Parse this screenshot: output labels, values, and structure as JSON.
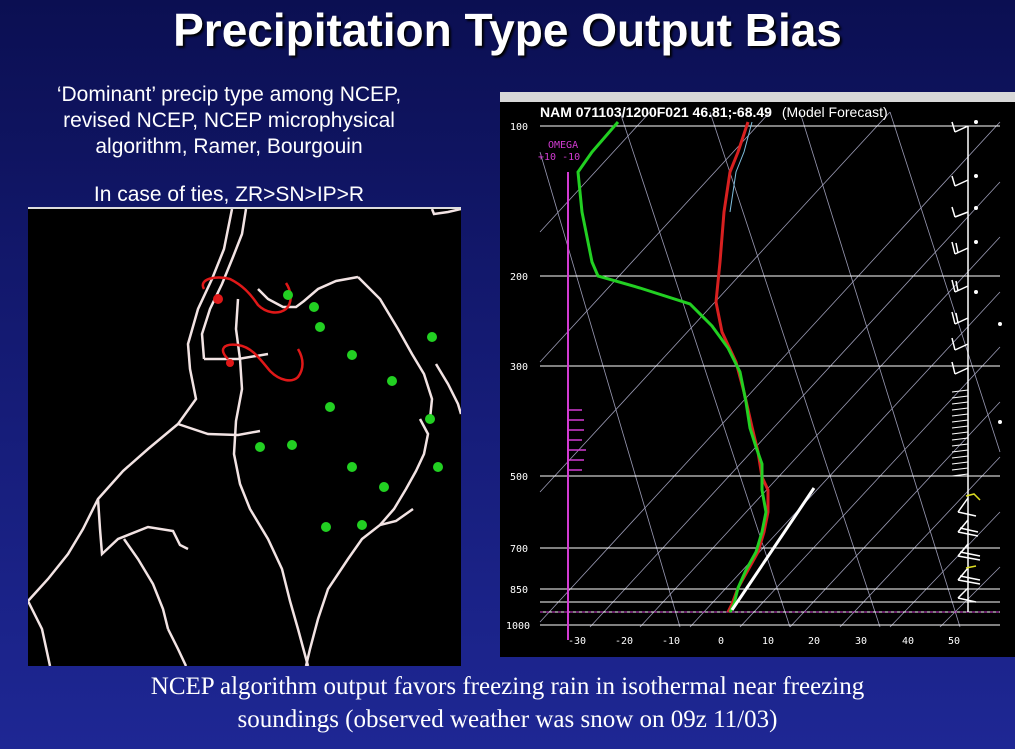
{
  "slide": {
    "title": "Precipitation Type Output Bias",
    "description_lines": [
      "‘Dominant’ precip type among NCEP,",
      "revised NCEP, NCEP microphysical",
      "algorithm, Ramer, Bourgouin"
    ],
    "ties_note": "In case of ties, ZR>SN>IP>R",
    "caption_lines": [
      "NCEP algorithm output favors freezing rain in isothermal near freezing",
      "soundings (observed weather was snow on 09z 11/03)"
    ]
  },
  "sounding": {
    "header_main": "NAM 071103/1200F021 46.81;-68.49",
    "header_mode": "(Model Forecast)",
    "omega_label": "OMEGA",
    "omega_scale": "+10  -10",
    "pressure_labels": [
      "100",
      "200",
      "300",
      "500",
      "700",
      "850",
      "1000"
    ],
    "temperature_labels": [
      "-30",
      "-20",
      "-10",
      "0",
      "10",
      "20",
      "30",
      "40",
      "50"
    ]
  },
  "colors": {
    "background": "#141a72",
    "temperature_trace": "#d82020",
    "dewpoint_trace": "#22d022",
    "omega_trace": "#d23bd2",
    "rain_marker": "#22d022",
    "freezing_rain_contour": "#e01818",
    "map_boundary": "#f2e3e3"
  },
  "icons": {
    "rain_marker": "filled-dot-glyph",
    "wind_barb": "wind-barb-glyph"
  }
}
